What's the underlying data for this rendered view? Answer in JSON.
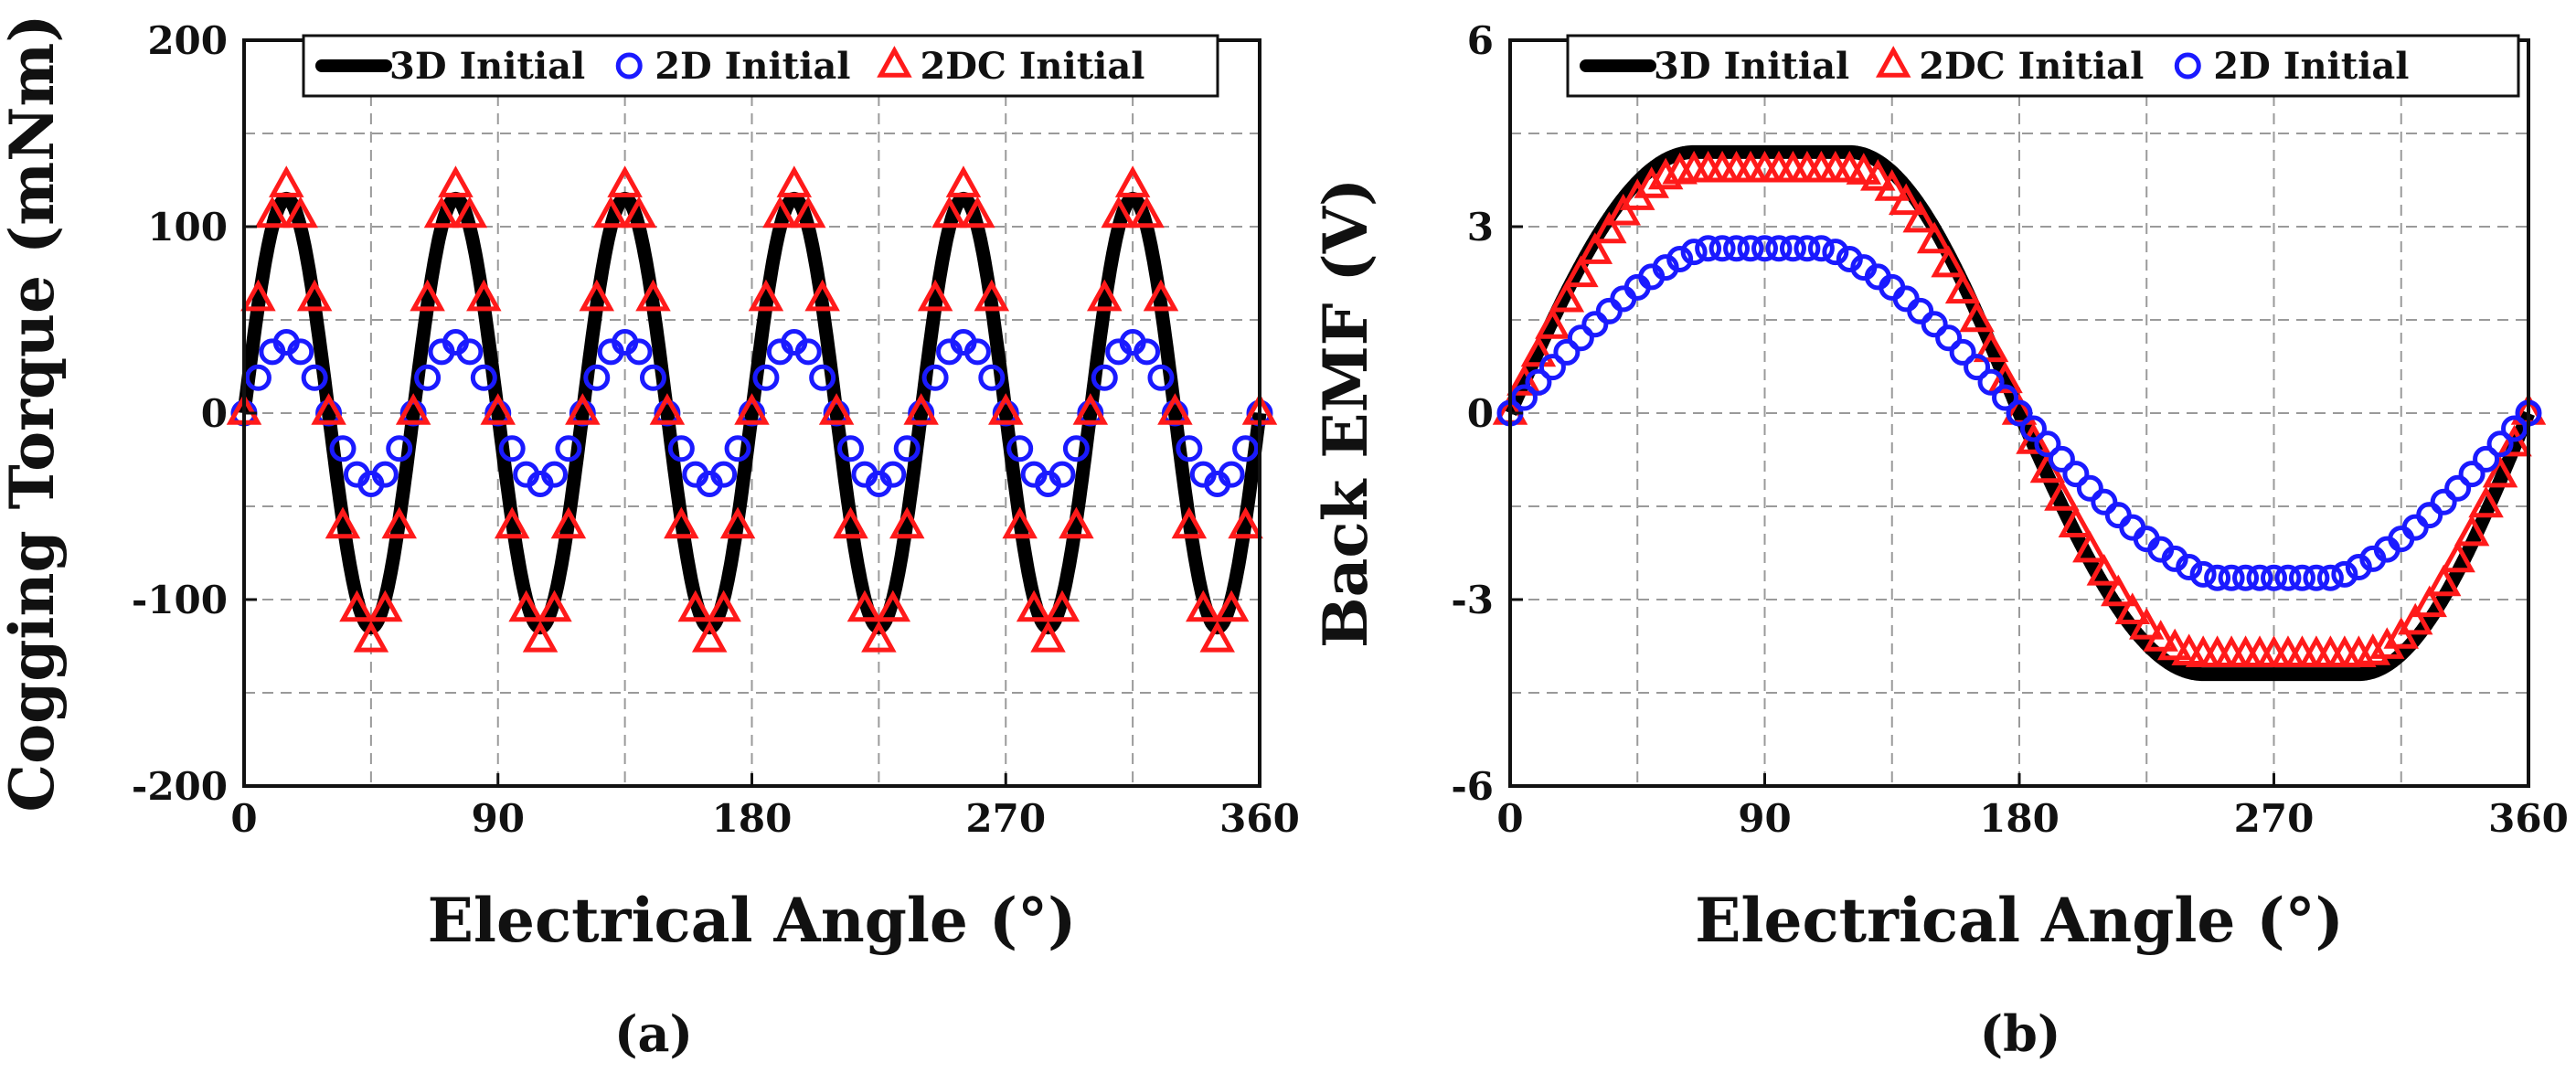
{
  "chart_data": [
    {
      "type": "line",
      "panel_label": "(a)",
      "xlabel": "Electrical Angle (°)",
      "ylabel": "Cogging Torque (mNm)",
      "xlim": [
        0,
        360
      ],
      "ylim": [
        -200,
        200
      ],
      "xticks": [
        0,
        90,
        180,
        270,
        360
      ],
      "yticks": [
        -200,
        -100,
        0,
        100,
        200
      ],
      "xtick_labels": [
        "0",
        "90",
        "180",
        "270",
        "360"
      ],
      "ytick_labels": [
        "-200",
        "-100",
        "0",
        "100",
        "200"
      ],
      "grid": true,
      "legend_position": "top",
      "series": [
        {
          "name": "3D Initial",
          "style": "line",
          "color": "#000000",
          "shape": "triangle",
          "period": 60,
          "amplitude": 115,
          "phase": 15
        },
        {
          "name": "2D Initial",
          "style": "circle",
          "color": "#1a1aff",
          "shape": "triangle",
          "period": 60,
          "amplitude": 38,
          "phase": 15
        },
        {
          "name": "2DC Initial",
          "style": "triangle",
          "color": "#ff1a1a",
          "shape": "triangle",
          "period": 60,
          "amplitude": 122,
          "phase": 15
        }
      ],
      "legend_order": [
        0,
        1,
        2
      ]
    },
    {
      "type": "line",
      "panel_label": "(b)",
      "xlabel": "Electrical Angle (°)",
      "ylabel": "Back EMF (V)",
      "xlim": [
        0,
        360
      ],
      "ylim": [
        -6,
        6
      ],
      "xticks": [
        0,
        90,
        180,
        270,
        360
      ],
      "yticks": [
        -6,
        -3,
        0,
        3,
        6
      ],
      "xtick_labels": [
        "0",
        "90",
        "180",
        "270",
        "360"
      ],
      "ytick_labels": [
        "-6",
        "-3",
        "0",
        "3",
        "6"
      ],
      "grid": true,
      "legend_position": "top",
      "series": [
        {
          "name": "3D Initial",
          "style": "line",
          "color": "#000000",
          "shape": "trapezoid",
          "amplitude": 4.2,
          "flat_start": 65,
          "flat_end": 120
        },
        {
          "name": "2DC Initial",
          "style": "triangle",
          "color": "#ff1a1a",
          "shape": "trapezoid",
          "amplitude": 3.9,
          "flat_start": 65,
          "flat_end": 120
        },
        {
          "name": "2D Initial",
          "style": "circle",
          "color": "#1a1aff",
          "shape": "rounded",
          "amplitude": 2.65
        }
      ],
      "legend_order": [
        0,
        1,
        2
      ]
    }
  ]
}
